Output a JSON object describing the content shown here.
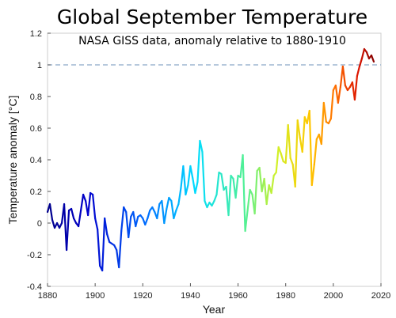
{
  "chart_data": {
    "type": "line",
    "title": "Global September Temperature",
    "subtitle": "NASA GISS data, anomaly relative to 1880-1910",
    "xlabel": "Year",
    "ylabel": "Temperature anomaly [°C]",
    "xlim": [
      1880,
      2020
    ],
    "ylim": [
      -0.4,
      1.2
    ],
    "x_ticks": [
      "1880",
      "1900",
      "1920",
      "1940",
      "1960",
      "1980",
      "2000",
      "2020"
    ],
    "y_ticks": [
      "-0.4",
      "-0.2",
      "0",
      "0.2",
      "0.4",
      "0.6",
      "0.8",
      "1",
      "1.2"
    ],
    "reference_line": {
      "y": 1.0,
      "style": "dashed",
      "color": "#8aa8c8"
    },
    "grid": false,
    "legend": "none",
    "color_scale": "year-gradient blue-cyan-green-yellow-red",
    "series": [
      {
        "x": [
          1880,
          1881,
          1882,
          1883,
          1884,
          1885,
          1886,
          1887,
          1888,
          1889,
          1890,
          1891,
          1892,
          1893,
          1894,
          1895,
          1896,
          1897,
          1898,
          1899,
          1900,
          1901,
          1902,
          1903,
          1904,
          1905,
          1906,
          1907,
          1908,
          1909,
          1910,
          1911,
          1912,
          1913,
          1914,
          1915,
          1916,
          1917,
          1918,
          1919,
          1920,
          1921,
          1922,
          1923,
          1924,
          1925,
          1926,
          1927,
          1928,
          1929,
          1930,
          1931,
          1932,
          1933,
          1934,
          1935,
          1936,
          1937,
          1938,
          1939,
          1940,
          1941,
          1942,
          1943,
          1944,
          1945,
          1946,
          1947,
          1948,
          1949,
          1950,
          1951,
          1952,
          1953,
          1954,
          1955,
          1956,
          1957,
          1958,
          1959,
          1960,
          1961,
          1962,
          1963,
          1964,
          1965,
          1966,
          1967,
          1968,
          1969,
          1970,
          1971,
          1972,
          1973,
          1974,
          1975,
          1976,
          1977,
          1978,
          1979,
          1980,
          1981,
          1982,
          1983,
          1984,
          1985,
          1986,
          1987,
          1988,
          1989,
          1990,
          1991,
          1992,
          1993,
          1994,
          1995,
          1996,
          1997,
          1998,
          1999,
          2000,
          2001,
          2002,
          2003,
          2004,
          2005,
          2006,
          2007,
          2008,
          2009,
          2010,
          2011,
          2012,
          2013,
          2014,
          2015,
          2016,
          2017
        ],
        "values": [
          0.07,
          0.12,
          0.02,
          -0.03,
          0.0,
          -0.03,
          0.0,
          0.12,
          -0.17,
          0.08,
          0.09,
          0.03,
          0.0,
          -0.02,
          0.08,
          0.18,
          0.14,
          0.05,
          0.19,
          0.18,
          0.03,
          -0.04,
          -0.27,
          -0.3,
          0.03,
          -0.07,
          -0.12,
          -0.13,
          -0.14,
          -0.17,
          -0.28,
          -0.05,
          0.1,
          0.07,
          -0.09,
          0.04,
          0.07,
          -0.02,
          0.04,
          0.05,
          0.03,
          -0.01,
          0.03,
          0.08,
          0.1,
          0.07,
          0.03,
          0.12,
          0.14,
          0.0,
          0.09,
          0.16,
          0.14,
          0.03,
          0.08,
          0.12,
          0.22,
          0.36,
          0.18,
          0.24,
          0.36,
          0.28,
          0.19,
          0.26,
          0.52,
          0.45,
          0.14,
          0.1,
          0.13,
          0.11,
          0.14,
          0.18,
          0.32,
          0.31,
          0.21,
          0.23,
          0.05,
          0.3,
          0.28,
          0.16,
          0.3,
          0.29,
          0.43,
          -0.05,
          0.08,
          0.21,
          0.18,
          0.06,
          0.33,
          0.35,
          0.2,
          0.28,
          0.12,
          0.24,
          0.19,
          0.3,
          0.32,
          0.48,
          0.44,
          0.39,
          0.38,
          0.62,
          0.41,
          0.37,
          0.23,
          0.65,
          0.54,
          0.45,
          0.67,
          0.63,
          0.71,
          0.24,
          0.37,
          0.53,
          0.56,
          0.5,
          0.76,
          0.64,
          0.63,
          0.66,
          0.84,
          0.87,
          0.76,
          0.86,
          0.99,
          0.87,
          0.84,
          0.86,
          0.89,
          0.78,
          0.93,
          0.99,
          1.04,
          1.1,
          1.08,
          1.04,
          1.06,
          1.02
        ]
      }
    ]
  }
}
